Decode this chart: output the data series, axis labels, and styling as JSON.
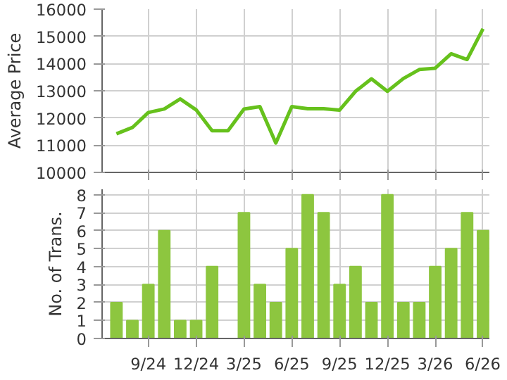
{
  "chart_data": [
    {
      "type": "line",
      "ylabel": "Average Price",
      "categories": [
        null,
        null,
        null,
        null,
        null,
        null,
        null,
        null,
        null,
        null,
        null,
        null,
        null,
        null,
        null,
        null,
        null,
        null,
        null,
        null,
        null,
        null,
        null,
        null
      ],
      "series": [
        {
          "color": "#66c11c",
          "values": [
            11420,
            11650,
            12200,
            12330,
            12700,
            12300,
            11530,
            11530,
            12330,
            12420,
            11080,
            12420,
            12340,
            12340,
            12290,
            12980,
            13440,
            12980,
            13450,
            13780,
            13830,
            14360,
            14150,
            15280
          ]
        }
      ],
      "ylim": [
        10000,
        16000
      ],
      "yticks": [
        10000,
        11000,
        12000,
        13000,
        14000,
        15000,
        16000
      ],
      "grid": true
    },
    {
      "type": "bar",
      "ylabel": "No. of Trans.",
      "categories": [
        null,
        null,
        "9/24",
        null,
        null,
        "12/24",
        null,
        null,
        "3/25",
        null,
        null,
        "6/25",
        null,
        null,
        "9/25",
        null,
        null,
        "12/25",
        null,
        null,
        "3/26",
        null,
        null,
        "6/26"
      ],
      "series": [
        {
          "color": "#8dc63f",
          "values": [
            2,
            1,
            3,
            6,
            1,
            1,
            4,
            0,
            7,
            3,
            2,
            5,
            8,
            7,
            3,
            4,
            2,
            8,
            2,
            2,
            4,
            5,
            7,
            6
          ]
        }
      ],
      "ylim": [
        0,
        8.3
      ],
      "yticks": [
        0,
        1,
        2,
        3,
        4,
        5,
        6,
        7,
        8
      ],
      "grid": true
    }
  ]
}
